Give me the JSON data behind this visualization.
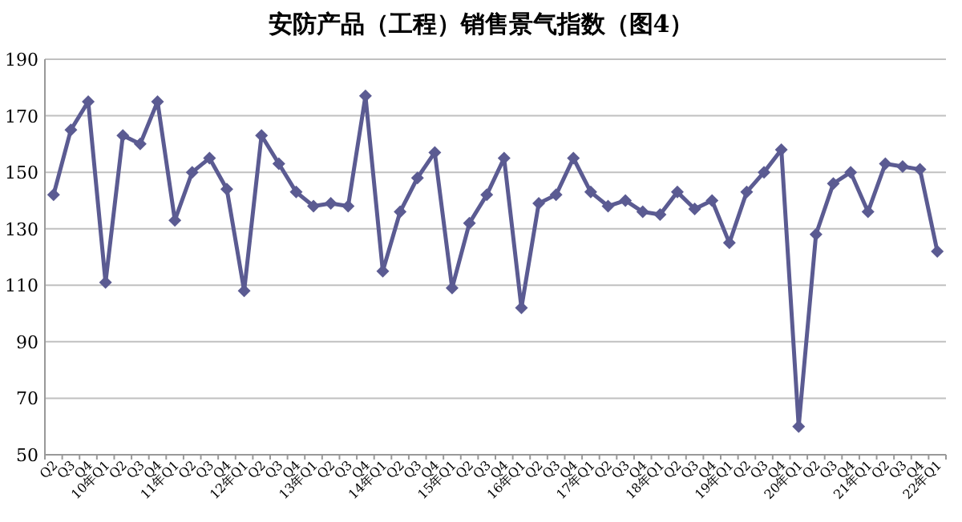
{
  "chart_data": {
    "type": "line",
    "title": "安防产品（工程）销售景气指数（图4）",
    "categories": [
      "Q2",
      "Q3",
      "Q4",
      "10年Q1",
      "Q2",
      "Q3",
      "Q4",
      "11年Q1",
      "Q2",
      "Q3",
      "Q4",
      "12年Q1",
      "Q2",
      "Q3",
      "Q4",
      "13年Q1",
      "Q2",
      "Q3",
      "Q4",
      "14年Q1",
      "Q2",
      "Q3",
      "Q4",
      "15年Q1",
      "Q2",
      "Q3",
      "Q4",
      "16年Q1",
      "Q2",
      "Q3",
      "Q4",
      "17年Q1",
      "Q2",
      "Q3",
      "Q4",
      "18年Q1",
      "Q2",
      "Q3",
      "Q4",
      "19年Q1",
      "Q2",
      "Q3",
      "Q4",
      "20年Q1",
      "Q2",
      "Q3",
      "Q4",
      "21年Q1",
      "Q2",
      "Q3",
      "Q4",
      "22年Q1"
    ],
    "series": [
      {
        "color": "#5b5b92",
        "values": [
          142,
          165,
          175,
          111,
          163,
          160,
          175,
          133,
          150,
          155,
          144,
          108,
          163,
          153,
          143,
          138,
          139,
          138,
          177,
          115,
          136,
          148,
          157,
          109,
          132,
          142,
          155,
          102,
          139,
          142,
          155,
          143,
          138,
          140,
          136,
          135,
          143,
          137,
          140,
          125,
          143,
          150,
          158,
          60,
          128,
          146,
          150,
          136,
          153,
          152,
          151,
          122
        ]
      }
    ],
    "ylim": [
      50,
      190
    ],
    "yticks": [
      50,
      70,
      90,
      110,
      130,
      150,
      170,
      190
    ],
    "grid": "y",
    "marker": "diamond",
    "line_style": "solid"
  }
}
